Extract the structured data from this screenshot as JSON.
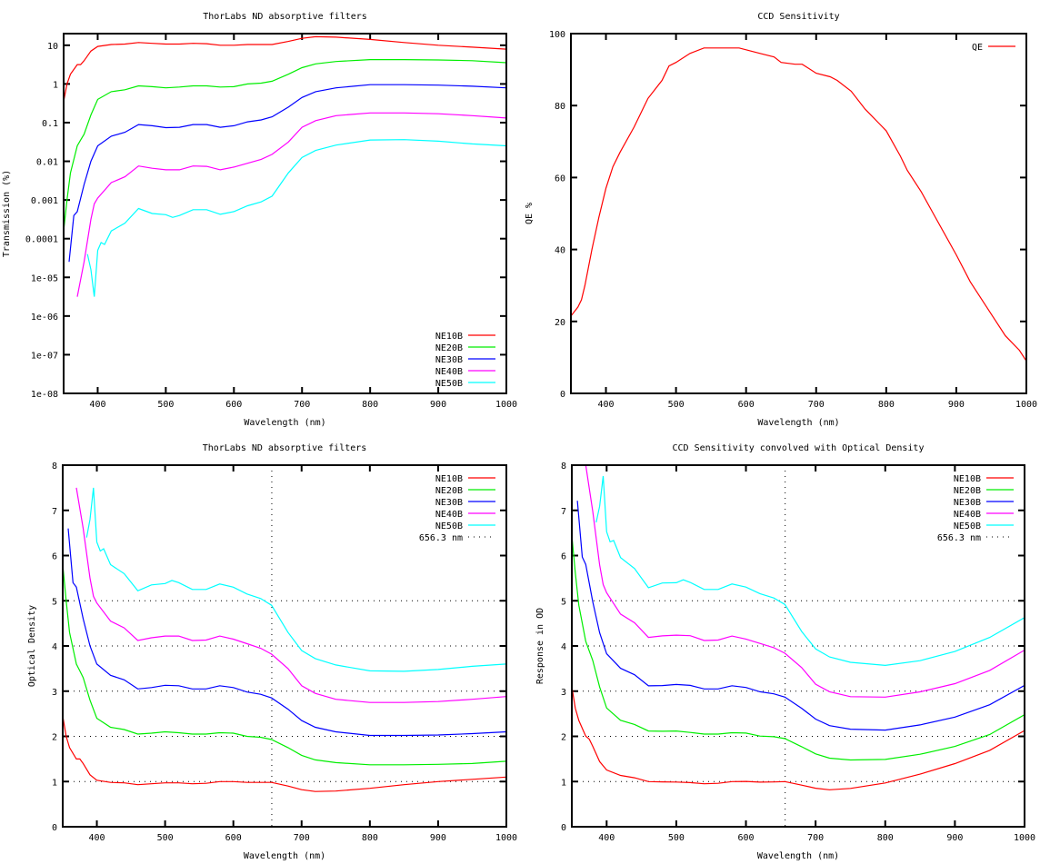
{
  "series_colors": {
    "NE10B": "#ff0000",
    "NE20B": "#00ee00",
    "NE30B": "#0000ff",
    "NE40B": "#ff00ff",
    "NE50B": "#00ffff",
    "QE": "#ff0000"
  },
  "optical_density": {
    "NE10B": [
      [
        350,
        2.45
      ],
      [
        355,
        2.0
      ],
      [
        360,
        1.75
      ],
      [
        370,
        1.5
      ],
      [
        375,
        1.5
      ],
      [
        380,
        1.4
      ],
      [
        390,
        1.15
      ],
      [
        400,
        1.03
      ],
      [
        420,
        0.98
      ],
      [
        440,
        0.97
      ],
      [
        460,
        0.93
      ],
      [
        480,
        0.95
      ],
      [
        500,
        0.97
      ],
      [
        520,
        0.97
      ],
      [
        540,
        0.95
      ],
      [
        560,
        0.96
      ],
      [
        580,
        1.0
      ],
      [
        600,
        1.0
      ],
      [
        620,
        0.98
      ],
      [
        640,
        0.98
      ],
      [
        656,
        0.98
      ],
      [
        680,
        0.9
      ],
      [
        700,
        0.82
      ],
      [
        720,
        0.78
      ],
      [
        750,
        0.79
      ],
      [
        800,
        0.85
      ],
      [
        850,
        0.93
      ],
      [
        900,
        1.0
      ],
      [
        950,
        1.05
      ],
      [
        1000,
        1.1
      ]
    ],
    "NE20B": [
      [
        350,
        5.8
      ],
      [
        355,
        5.0
      ],
      [
        360,
        4.3
      ],
      [
        370,
        3.6
      ],
      [
        375,
        3.45
      ],
      [
        380,
        3.3
      ],
      [
        390,
        2.8
      ],
      [
        400,
        2.4
      ],
      [
        420,
        2.2
      ],
      [
        440,
        2.15
      ],
      [
        460,
        2.05
      ],
      [
        480,
        2.07
      ],
      [
        500,
        2.1
      ],
      [
        520,
        2.08
      ],
      [
        540,
        2.05
      ],
      [
        560,
        2.05
      ],
      [
        580,
        2.08
      ],
      [
        600,
        2.07
      ],
      [
        620,
        2.0
      ],
      [
        640,
        1.98
      ],
      [
        656,
        1.93
      ],
      [
        680,
        1.75
      ],
      [
        700,
        1.58
      ],
      [
        720,
        1.48
      ],
      [
        750,
        1.42
      ],
      [
        800,
        1.37
      ],
      [
        850,
        1.37
      ],
      [
        900,
        1.38
      ],
      [
        950,
        1.4
      ],
      [
        1000,
        1.45
      ]
    ],
    "NE30B": [
      [
        358,
        6.6
      ],
      [
        365,
        5.4
      ],
      [
        370,
        5.3
      ],
      [
        380,
        4.6
      ],
      [
        390,
        4.0
      ],
      [
        400,
        3.6
      ],
      [
        420,
        3.35
      ],
      [
        440,
        3.25
      ],
      [
        460,
        3.05
      ],
      [
        480,
        3.08
      ],
      [
        500,
        3.13
      ],
      [
        520,
        3.12
      ],
      [
        540,
        3.05
      ],
      [
        560,
        3.05
      ],
      [
        580,
        3.12
      ],
      [
        600,
        3.08
      ],
      [
        620,
        2.98
      ],
      [
        640,
        2.93
      ],
      [
        656,
        2.85
      ],
      [
        680,
        2.6
      ],
      [
        700,
        2.35
      ],
      [
        720,
        2.2
      ],
      [
        750,
        2.1
      ],
      [
        800,
        2.02
      ],
      [
        850,
        2.02
      ],
      [
        900,
        2.03
      ],
      [
        950,
        2.06
      ],
      [
        1000,
        2.1
      ]
    ],
    "NE40B": [
      [
        370,
        7.5
      ],
      [
        380,
        6.6
      ],
      [
        390,
        5.5
      ],
      [
        395,
        5.1
      ],
      [
        400,
        4.95
      ],
      [
        420,
        4.55
      ],
      [
        440,
        4.4
      ],
      [
        460,
        4.12
      ],
      [
        480,
        4.18
      ],
      [
        500,
        4.22
      ],
      [
        520,
        4.22
      ],
      [
        540,
        4.12
      ],
      [
        560,
        4.13
      ],
      [
        580,
        4.22
      ],
      [
        600,
        4.15
      ],
      [
        620,
        4.05
      ],
      [
        640,
        3.95
      ],
      [
        656,
        3.82
      ],
      [
        680,
        3.5
      ],
      [
        700,
        3.12
      ],
      [
        720,
        2.95
      ],
      [
        750,
        2.82
      ],
      [
        800,
        2.75
      ],
      [
        850,
        2.75
      ],
      [
        900,
        2.77
      ],
      [
        950,
        2.82
      ],
      [
        1000,
        2.88
      ]
    ],
    "NE50B": [
      [
        385,
        6.4
      ],
      [
        390,
        6.8
      ],
      [
        395,
        7.5
      ],
      [
        400,
        6.3
      ],
      [
        405,
        6.1
      ],
      [
        410,
        6.15
      ],
      [
        420,
        5.8
      ],
      [
        440,
        5.6
      ],
      [
        460,
        5.22
      ],
      [
        480,
        5.35
      ],
      [
        500,
        5.38
      ],
      [
        510,
        5.45
      ],
      [
        520,
        5.4
      ],
      [
        540,
        5.25
      ],
      [
        560,
        5.25
      ],
      [
        580,
        5.37
      ],
      [
        600,
        5.3
      ],
      [
        620,
        5.15
      ],
      [
        640,
        5.05
      ],
      [
        656,
        4.9
      ],
      [
        680,
        4.3
      ],
      [
        700,
        3.9
      ],
      [
        720,
        3.72
      ],
      [
        750,
        3.58
      ],
      [
        800,
        3.45
      ],
      [
        850,
        3.44
      ],
      [
        900,
        3.48
      ],
      [
        950,
        3.55
      ],
      [
        1000,
        3.6
      ]
    ]
  },
  "qe_percent": [
    [
      350,
      21.5
    ],
    [
      360,
      24
    ],
    [
      365,
      26
    ],
    [
      370,
      30
    ],
    [
      380,
      40
    ],
    [
      390,
      49
    ],
    [
      400,
      57
    ],
    [
      410,
      63
    ],
    [
      420,
      67
    ],
    [
      440,
      74
    ],
    [
      460,
      82
    ],
    [
      480,
      87
    ],
    [
      490,
      91
    ],
    [
      500,
      92
    ],
    [
      520,
      94.5
    ],
    [
      540,
      96
    ],
    [
      560,
      96
    ],
    [
      590,
      96
    ],
    [
      600,
      95.5
    ],
    [
      620,
      94.5
    ],
    [
      640,
      93.5
    ],
    [
      650,
      92
    ],
    [
      670,
      91.5
    ],
    [
      680,
      91.5
    ],
    [
      700,
      89
    ],
    [
      720,
      88
    ],
    [
      730,
      87
    ],
    [
      750,
      84
    ],
    [
      770,
      79
    ],
    [
      790,
      75
    ],
    [
      800,
      73
    ],
    [
      820,
      66
    ],
    [
      830,
      62
    ],
    [
      850,
      56
    ],
    [
      870,
      49
    ],
    [
      900,
      38.5
    ],
    [
      920,
      31
    ],
    [
      930,
      28
    ],
    [
      950,
      22
    ],
    [
      970,
      16
    ],
    [
      990,
      12
    ],
    [
      1000,
      9
    ]
  ],
  "chart_data": [
    {
      "type": "line",
      "title": "ThorLabs ND absorptive filters",
      "xlabel": "Wavelength (nm)",
      "ylabel": "Transmission (%)",
      "xlim": [
        350,
        1000
      ],
      "ylim": [
        1e-08,
        20
      ],
      "yscale": "log",
      "grid": false,
      "legend_position": "bottom-right",
      "y_from": "transmission = 100*10^(-optical_density)",
      "xticks": [
        "400",
        "500",
        "600",
        "700",
        "800",
        "900",
        "1000"
      ],
      "yticks": [
        {
          "v": 10,
          "label": "10"
        },
        {
          "v": 1,
          "label": "1"
        },
        {
          "v": 0.1,
          "label": "0.1"
        },
        {
          "v": 0.01,
          "label": "0.01"
        },
        {
          "v": 0.001,
          "label": "0.001"
        },
        {
          "v": 0.0001,
          "label": "0.0001"
        },
        {
          "v": 1e-05,
          "label": "1e-05"
        },
        {
          "v": 1e-06,
          "label": "1e-06"
        },
        {
          "v": 1e-07,
          "label": "1e-07"
        },
        {
          "v": 1e-08,
          "label": "1e-08"
        }
      ],
      "legend": [
        "NE10B",
        "NE20B",
        "NE30B",
        "NE40B",
        "NE50B"
      ]
    },
    {
      "type": "line",
      "title": "CCD Sensitivity",
      "xlabel": "Wavelength (nm)",
      "ylabel": "QE %",
      "xlim": [
        350,
        1000
      ],
      "ylim": [
        0,
        100
      ],
      "yscale": "linear",
      "grid": false,
      "legend_position": "top-right",
      "xticks": [
        "400",
        "500",
        "600",
        "700",
        "800",
        "900",
        "1000"
      ],
      "yticks": [
        {
          "v": 0,
          "label": "0"
        },
        {
          "v": 20,
          "label": "20"
        },
        {
          "v": 40,
          "label": "40"
        },
        {
          "v": 60,
          "label": "60"
        },
        {
          "v": 80,
          "label": "80"
        },
        {
          "v": 100,
          "label": "100"
        }
      ],
      "legend": [
        "QE"
      ]
    },
    {
      "type": "line",
      "title": "ThorLabs ND absorptive filters",
      "xlabel": "Wavelength (nm)",
      "ylabel": "Optical Density",
      "xlim": [
        350,
        1000
      ],
      "ylim": [
        0,
        8
      ],
      "yscale": "linear",
      "grid": "dotted at y=1..5",
      "legend_position": "top-right",
      "vline": {
        "x": 656.3,
        "label": "656.3 nm"
      },
      "xticks": [
        "400",
        "500",
        "600",
        "700",
        "800",
        "900",
        "1000"
      ],
      "yticks": [
        {
          "v": 0,
          "label": "0"
        },
        {
          "v": 1,
          "label": "1"
        },
        {
          "v": 2,
          "label": "2"
        },
        {
          "v": 3,
          "label": "3"
        },
        {
          "v": 4,
          "label": "4"
        },
        {
          "v": 5,
          "label": "5"
        },
        {
          "v": 6,
          "label": "6"
        },
        {
          "v": 7,
          "label": "7"
        },
        {
          "v": 8,
          "label": "8"
        }
      ],
      "legend": [
        "NE10B",
        "NE20B",
        "NE30B",
        "NE40B",
        "NE50B",
        "656.3 nm"
      ]
    },
    {
      "type": "line",
      "title": "CCD Sensitivity convolved with Optical Density",
      "xlabel": "Wavelength (nm)",
      "ylabel": "Response in OD",
      "xlim": [
        350,
        1000
      ],
      "ylim": [
        0,
        8
      ],
      "yscale": "linear",
      "grid": "dotted at y=1..5",
      "legend_position": "top-right",
      "y_from": "response = optical_density + log10(96 / qe_percent)",
      "vline": {
        "x": 656.3,
        "label": "656.3 nm"
      },
      "xticks": [
        "400",
        "500",
        "600",
        "700",
        "800",
        "900",
        "1000"
      ],
      "yticks": [
        {
          "v": 0,
          "label": "0"
        },
        {
          "v": 1,
          "label": "1"
        },
        {
          "v": 2,
          "label": "2"
        },
        {
          "v": 3,
          "label": "3"
        },
        {
          "v": 4,
          "label": "4"
        },
        {
          "v": 5,
          "label": "5"
        },
        {
          "v": 6,
          "label": "6"
        },
        {
          "v": 7,
          "label": "7"
        },
        {
          "v": 8,
          "label": "8"
        }
      ],
      "legend": [
        "NE10B",
        "NE20B",
        "NE30B",
        "NE40B",
        "NE50B",
        "656.3 nm"
      ]
    }
  ]
}
